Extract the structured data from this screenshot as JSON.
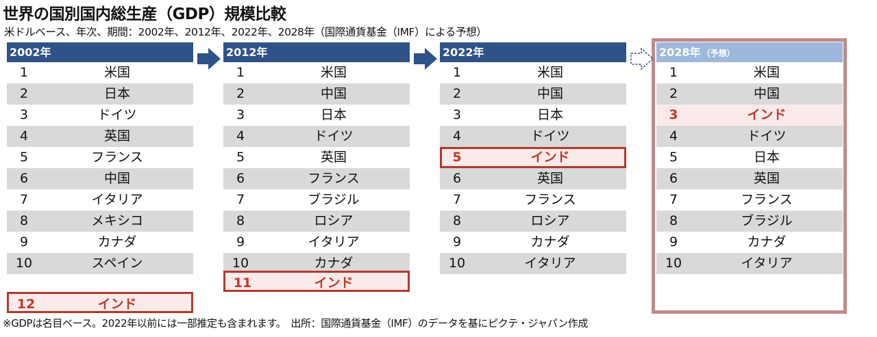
{
  "title": "世界の国別国内総生産（GDP）規模比較",
  "subtitle": "米ドルベース、年次、期間：2002年、2012年、2022年、2028年（国際通貨基金（IMF）による予想）",
  "footnote": "※GDPは名目ベース。2022年以前には一部推定も含まれます。　出所：国際通貨基金（IMF）のデータを基にピクテ・ジャパン作成",
  "colors": {
    "header": "#2f5288",
    "header_forecast": "#9db8db",
    "highlight": "#c0392b",
    "frame": "#c08a88"
  },
  "chart_data": {
    "type": "table",
    "columns": [
      {
        "year": "2002年",
        "note": "",
        "ranks": [
          "1",
          "2",
          "3",
          "4",
          "5",
          "6",
          "7",
          "8",
          "9",
          "10"
        ],
        "countries": [
          "米国",
          "日本",
          "ドイツ",
          "英国",
          "フランス",
          "中国",
          "イタリア",
          "メキシコ",
          "カナダ",
          "スペイン"
        ],
        "india": {
          "rank": "12",
          "name": "インド"
        }
      },
      {
        "year": "2012年",
        "note": "",
        "ranks": [
          "1",
          "2",
          "3",
          "4",
          "5",
          "6",
          "7",
          "8",
          "9",
          "10"
        ],
        "countries": [
          "米国",
          "中国",
          "日本",
          "ドイツ",
          "英国",
          "フランス",
          "ブラジル",
          "ロシア",
          "イタリア",
          "カナダ"
        ],
        "india": {
          "rank": "11",
          "name": "インド"
        }
      },
      {
        "year": "2022年",
        "note": "",
        "ranks": [
          "1",
          "2",
          "3",
          "4",
          "5",
          "6",
          "7",
          "8",
          "9",
          "10"
        ],
        "countries": [
          "米国",
          "中国",
          "日本",
          "ドイツ",
          "インド",
          "英国",
          "フランス",
          "ロシア",
          "カナダ",
          "イタリア"
        ],
        "india_rank": 5
      },
      {
        "year": "2028年",
        "note": "（予想）",
        "ranks": [
          "1",
          "2",
          "3",
          "4",
          "5",
          "6",
          "7",
          "8",
          "9",
          "10"
        ],
        "countries": [
          "米国",
          "中国",
          "インド",
          "ドイツ",
          "日本",
          "英国",
          "フランス",
          "ブラジル",
          "カナダ",
          "イタリア"
        ],
        "india_rank": 3
      }
    ]
  }
}
